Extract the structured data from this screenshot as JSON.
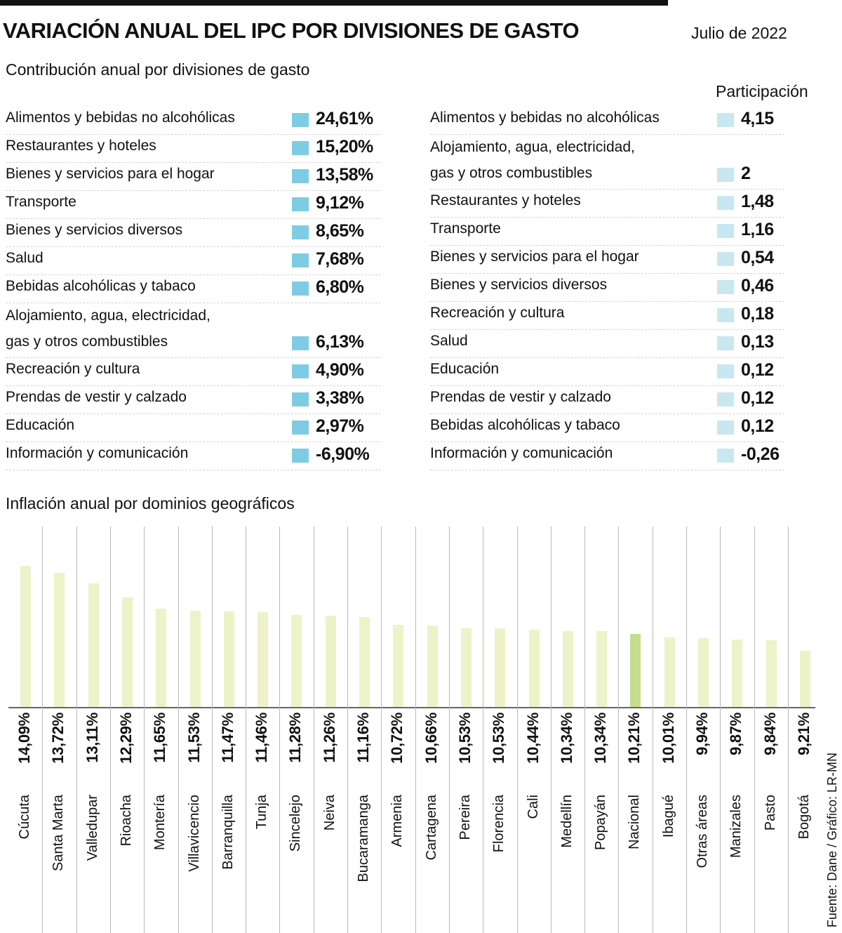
{
  "header": {
    "title": "VARIACIÓN ANUAL DEL IPC POR DIVISIONES DE GASTO",
    "date": "Julio de 2022"
  },
  "contribution": {
    "subtitle": "Contribución anual por divisiones de gasto",
    "marker_color": "#7ecce4",
    "rows": [
      {
        "label": "Alimentos y bebidas no alcohólicas",
        "value": "24,61%"
      },
      {
        "label": "Restaurantes y hoteles",
        "value": "15,20%"
      },
      {
        "label": "Bienes y servicios para el hogar",
        "value": "13,58%"
      },
      {
        "label": "Transporte",
        "value": "9,12%"
      },
      {
        "label": "Bienes y servicios diversos",
        "value": "8,65%"
      },
      {
        "label": "Salud",
        "value": "7,68%"
      },
      {
        "label": "Bebidas alcohólicas y tabaco",
        "value": "6,80%"
      },
      {
        "label": "Alojamiento, agua, electricidad,",
        "label2": "gas y otros combustibles",
        "value": "6,13%"
      },
      {
        "label": "Recreación y cultura",
        "value": "4,90%"
      },
      {
        "label": "Prendas de vestir y calzado",
        "value": "3,38%"
      },
      {
        "label": "Educación",
        "value": "2,97%"
      },
      {
        "label": "Información y comunicación",
        "value": "-6,90%"
      }
    ]
  },
  "participation": {
    "header": "Participación",
    "marker_color": "#c8e7f1",
    "rows": [
      {
        "label": "Alimentos y bebidas no alcohólicas",
        "value": "4,15"
      },
      {
        "label": "Alojamiento, agua, electricidad,",
        "label2": "gas y otros combustibles",
        "value": "2"
      },
      {
        "label": "Restaurantes y hoteles",
        "value": "1,48"
      },
      {
        "label": "Transporte",
        "value": "1,16"
      },
      {
        "label": "Bienes y servicios para el hogar",
        "value": "0,54"
      },
      {
        "label": "Bienes y servicios diversos",
        "value": "0,46"
      },
      {
        "label": "Recreación y cultura",
        "value": "0,18"
      },
      {
        "label": "Salud",
        "value": "0,13"
      },
      {
        "label": "Educación",
        "value": "0,12"
      },
      {
        "label": "Prendas de vestir y calzado",
        "value": "0,12"
      },
      {
        "label": "Bebidas alcohólicas y tabaco",
        "value": "0,12"
      },
      {
        "label": "Información y comunicación",
        "value": "-0,26"
      }
    ]
  },
  "chart_data": {
    "type": "bar",
    "title": "Inflación anual por dominios geográficos",
    "categories": [
      "Cúcuta",
      "Santa Marta",
      "Valledupar",
      "Rioacha",
      "Montería",
      "Villavicencio",
      "Barranquilla",
      "Tunja",
      "Sincelejo",
      "Neiva",
      "Bucaramanga",
      "Armenia",
      "Cartagena",
      "Pereira",
      "Florencia",
      "Cali",
      "Medellín",
      "Popayán",
      "Nacional",
      "Ibagué",
      "Otras áreas",
      "Manizales",
      "Pasto",
      "Bogotá"
    ],
    "values": [
      14.09,
      13.72,
      13.11,
      12.29,
      11.65,
      11.53,
      11.47,
      11.46,
      11.28,
      11.26,
      11.16,
      10.72,
      10.66,
      10.53,
      10.53,
      10.44,
      10.34,
      10.34,
      10.21,
      10.01,
      9.94,
      9.87,
      9.84,
      9.21
    ],
    "labels": [
      "14,09%",
      "13,72%",
      "13,11%",
      "12,29%",
      "11,65%",
      "11,53%",
      "11,47%",
      "11,46%",
      "11,28%",
      "11,26%",
      "11,16%",
      "10,72%",
      "10,66%",
      "10,53%",
      "10,53%",
      "10,44%",
      "10,34%",
      "10,34%",
      "10,21%",
      "10,01%",
      "9,94%",
      "9,87%",
      "9,84%",
      "9,21%"
    ],
    "ylim": [
      6,
      14.5
    ],
    "grid": false,
    "bar_color": "#eef2c8",
    "highlight": {
      "category": "Nacional",
      "color": "#c5dc8c"
    }
  },
  "source": "Fuente: Dane / Gráfico: LR-MN"
}
